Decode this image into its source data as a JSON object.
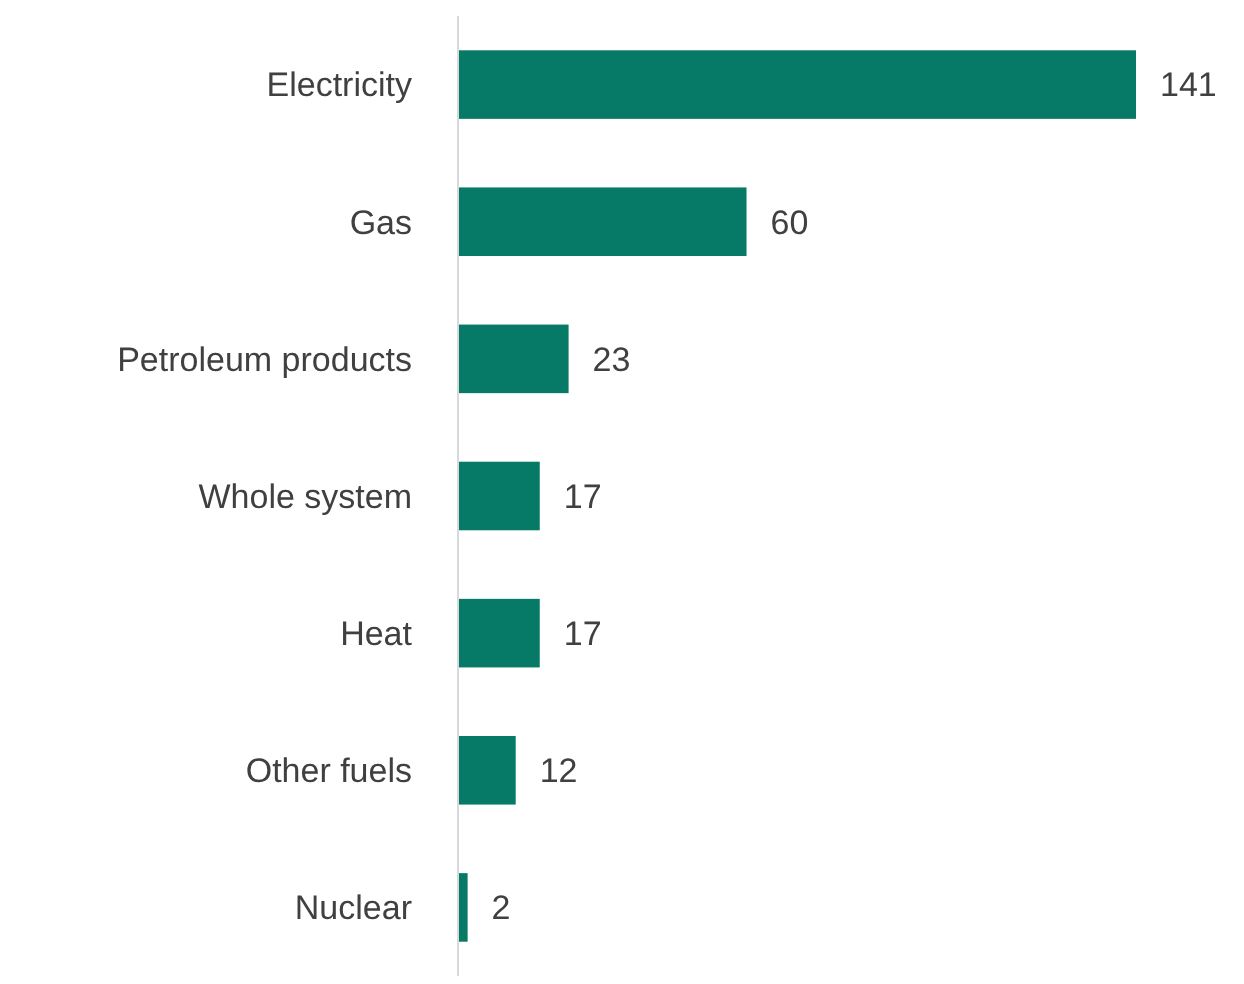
{
  "chart_data": {
    "type": "bar",
    "orientation": "horizontal",
    "categories": [
      "Electricity",
      "Gas",
      "Petroleum products",
      "Whole system",
      "Heat",
      "Other fuels",
      "Nuclear"
    ],
    "values": [
      141,
      60,
      23,
      17,
      17,
      12,
      2
    ],
    "color": "#067a66",
    "data_labels": true
  }
}
